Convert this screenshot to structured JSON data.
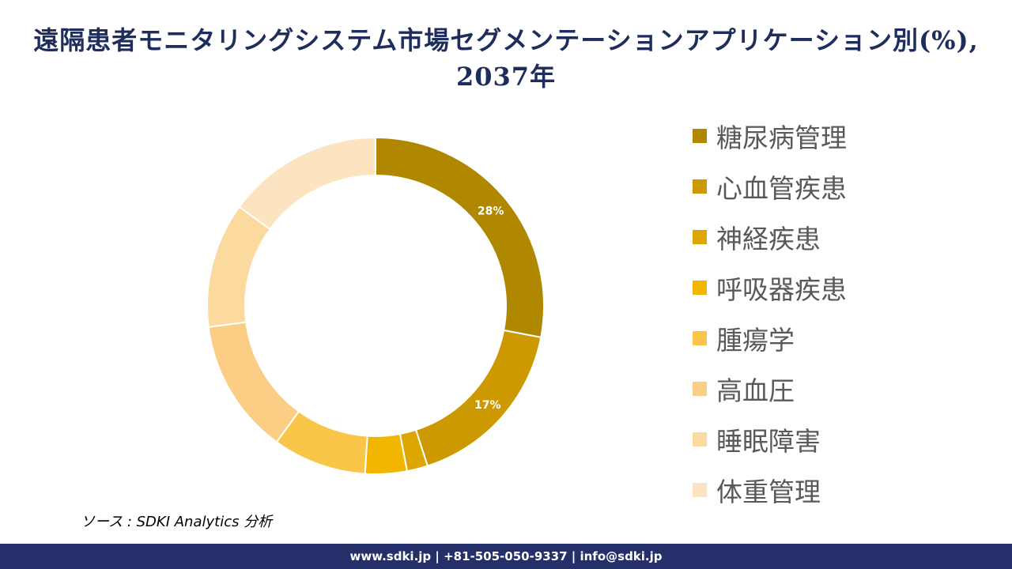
{
  "colors": {
    "title": "#1f2d5c",
    "footer_bg": "#25306a",
    "slices": [
      "#b08800",
      "#cc9a00",
      "#dda600",
      "#f2b600",
      "#fac64a",
      "#fccd84",
      "#fcd99e",
      "#fde4c0"
    ]
  },
  "chart_data": {
    "type": "pie",
    "variant": "donut",
    "title": "遠隔患者モニタリングシステム市場セグメンテーションアプリケーション別(%), 2037年",
    "categories": [
      "糖尿病管理",
      "心血管疾患",
      "神経疾患",
      "呼吸器疾患",
      "腫瘍学",
      "高血圧",
      "睡眠障害",
      "体重管理"
    ],
    "values": [
      28,
      17,
      2,
      4,
      9,
      13,
      12,
      15
    ],
    "data_labels": [
      "28%",
      "17%",
      "",
      "",
      "",
      "",
      "",
      ""
    ],
    "legend": "right"
  },
  "source": "ソース : SDKI Analytics 分析",
  "footer": "www.sdki.jp | +81-505-050-9337 | info@sdki.jp"
}
